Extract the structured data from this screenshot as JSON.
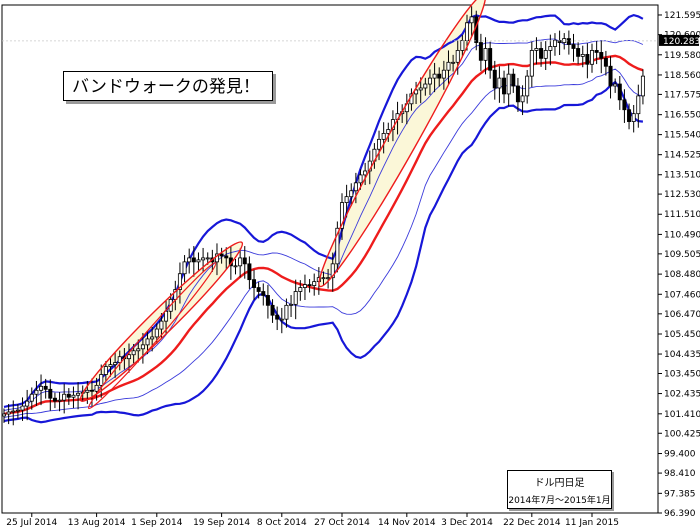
{
  "chart_data": {
    "type": "candlestick",
    "instrument_label": "ドル円日足",
    "period_label": "2014年7月〜2015年1月",
    "annotation": "バンドウォークの発見！",
    "current_price_label": "120.283",
    "y_ticks": [
      "121.595",
      "120.600",
      "119.580",
      "118.560",
      "117.575",
      "116.550",
      "115.540",
      "114.525",
      "113.510",
      "112.530",
      "111.510",
      "110.490",
      "109.505",
      "108.480",
      "107.460",
      "106.470",
      "105.450",
      "104.435",
      "103.450",
      "102.435",
      "101.410",
      "100.425",
      "99.400",
      "98.410",
      "97.385",
      "96.390"
    ],
    "ylim": [
      96.39,
      122.1
    ],
    "x_ticks": [
      {
        "label": "25 Jul 2014",
        "idx": 6
      },
      {
        "label": "13 Aug 2014",
        "idx": 20
      },
      {
        "label": "1 Sep 2014",
        "idx": 33
      },
      {
        "label": "19 Sep 2014",
        "idx": 47
      },
      {
        "label": "8 Oct 2014",
        "idx": 60
      },
      {
        "label": "27 Oct 2014",
        "idx": 73
      },
      {
        "label": "14 Nov 2014",
        "idx": 87
      },
      {
        "label": "3 Dec 2014",
        "idx": 100
      },
      {
        "label": "22 Dec 2014",
        "idx": 114
      },
      {
        "label": "11 Jan 2015",
        "idx": 127
      }
    ],
    "close": [
      101.4,
      101.5,
      101.55,
      101.6,
      101.8,
      102.05,
      102.4,
      102.6,
      102.8,
      102.65,
      102.2,
      102.05,
      102.1,
      102.4,
      102.25,
      102.35,
      102.45,
      102.5,
      102.6,
      102.55,
      102.85,
      103.4,
      103.8,
      103.9,
      104.0,
      104.3,
      104.2,
      104.4,
      104.6,
      104.7,
      104.9,
      105.2,
      105.3,
      105.7,
      106.1,
      106.6,
      107.2,
      107.7,
      108.5,
      109.1,
      109.3,
      109.1,
      109.2,
      109.3,
      109.3,
      109.1,
      109.5,
      109.4,
      109.3,
      108.9,
      108.9,
      109.3,
      109.0,
      108.2,
      107.8,
      107.6,
      107.4,
      106.9,
      106.4,
      106.2,
      106.2,
      106.9,
      106.95,
      107.6,
      107.8,
      107.95,
      107.9,
      108.1,
      108.3,
      108.3,
      108.3,
      109.0,
      110.8,
      112.1,
      112.4,
      112.7,
      113.1,
      113.5,
      113.7,
      114.2,
      114.8,
      115.3,
      115.6,
      115.8,
      116.3,
      116.6,
      116.7,
      117.1,
      117.6,
      117.8,
      117.9,
      118.1,
      118.4,
      118.6,
      118.4,
      118.8,
      119.2,
      119.2,
      119.8,
      120.3,
      121.2,
      121.5,
      120.2,
      119.3,
      119.9,
      118.8,
      117.9,
      118.4,
      117.6,
      118.6,
      118.0,
      117.2,
      117.5,
      118.5,
      119.8,
      119.9,
      119.4,
      119.8,
      120.0,
      120.3,
      120.2,
      120.4,
      120.1,
      119.9,
      119.5,
      119.6,
      119.1,
      119.8,
      119.7,
      119.4,
      119.0,
      118.0,
      118.1,
      117.3,
      116.8,
      116.2,
      116.6,
      117.5,
      118.5
    ],
    "bollinger": {
      "period": 20,
      "inner_k": 1,
      "outer_k": 2,
      "colors": {
        "mid": "#ee1c1c",
        "inner": "#3b3bdb",
        "outer": "#1717d8"
      }
    },
    "highlight_ellipses": 3,
    "colors": {
      "candle": "#000000",
      "highlight_fill": "#fbf7d8",
      "ellipse": "#ee1c1c",
      "axis_text": "#000000"
    }
  }
}
